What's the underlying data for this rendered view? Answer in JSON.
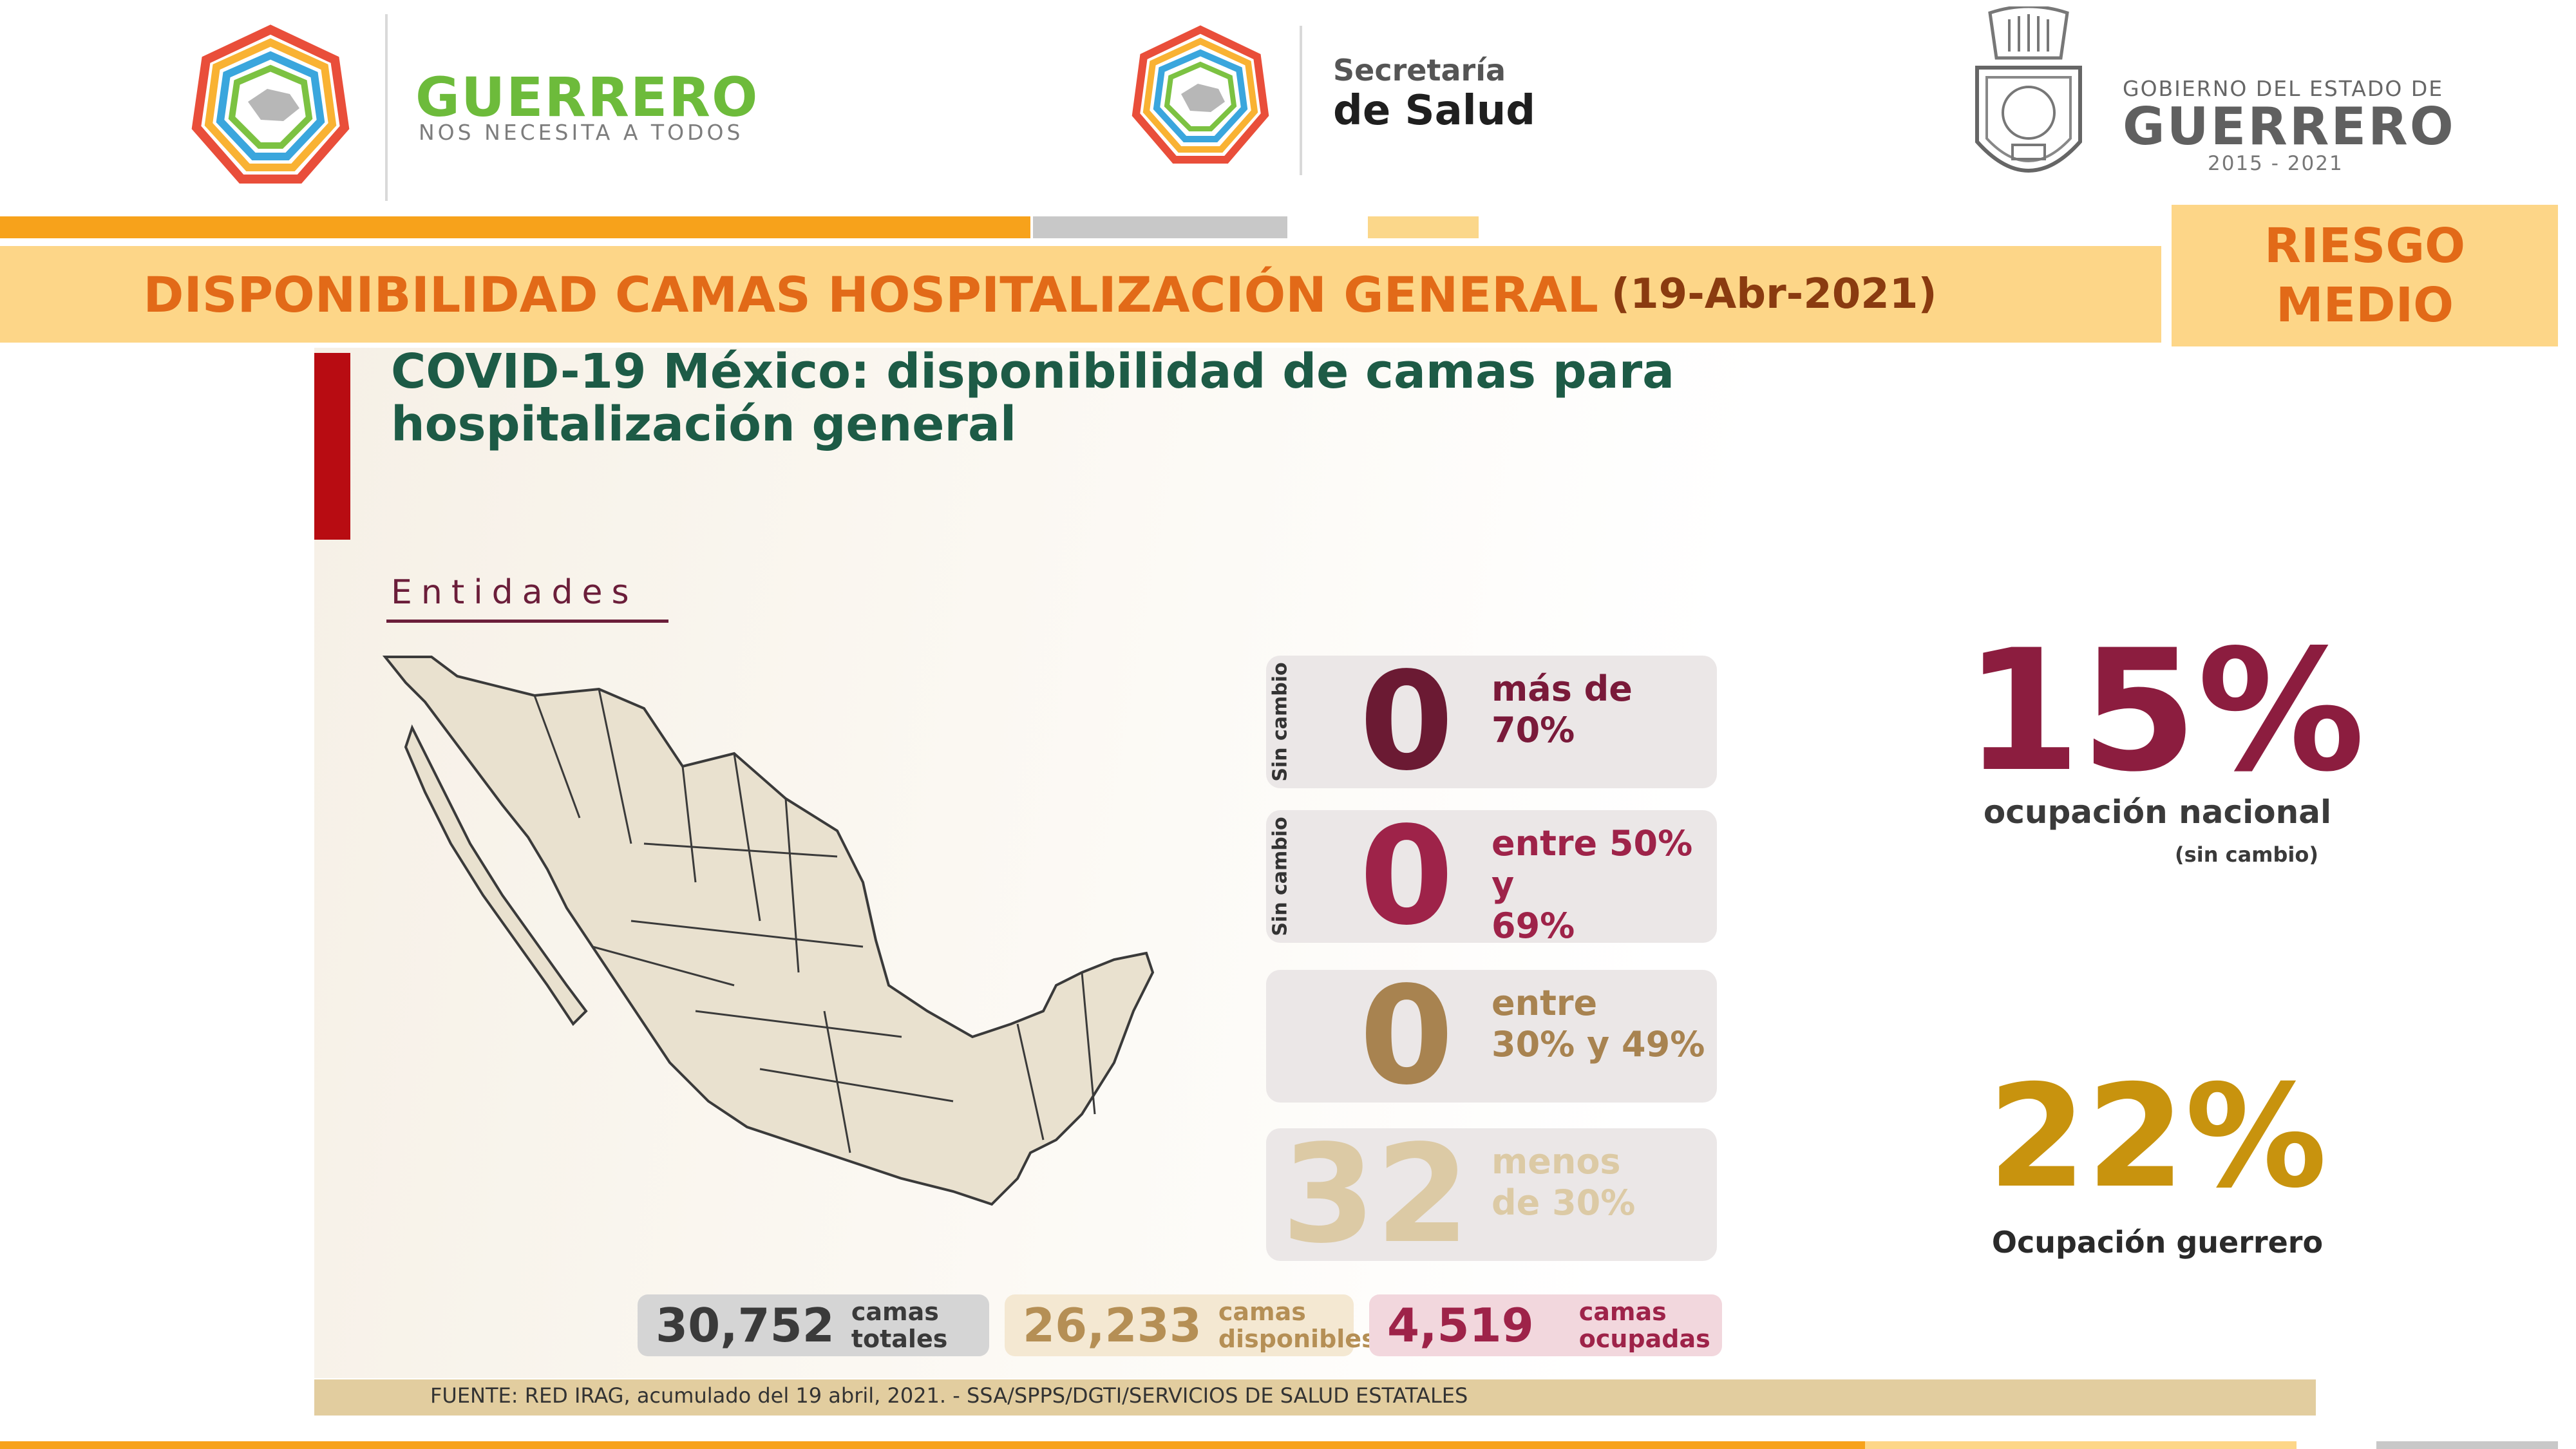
{
  "header": {
    "guerrero_logo": {
      "name": "GUERRERO",
      "tagline": "NOS NECESITA A TODOS"
    },
    "secretaria": {
      "line1": "Secretaría",
      "line2": "de Salud"
    },
    "gobierno": {
      "line1": "GOBIERNO DEL ESTADO DE",
      "line2": "GUERRERO",
      "line3": "2015 - 2021"
    }
  },
  "banner": {
    "title": "DISPONIBILIDAD CAMAS HOSPITALIZACIÓN GENERAL",
    "date": "(19-Abr-2021)",
    "risk_line1": "RIESGO",
    "risk_line2": "MEDIO"
  },
  "main": {
    "title_line1": "COVID-19 México: disponibilidad de camas para",
    "title_line2": "hospitalización general",
    "section_label": "Entidades"
  },
  "categories": [
    {
      "side": "Sin cambio",
      "count": "0",
      "label1": "más de",
      "label2": "70%",
      "num_color": "#6b1a33",
      "label_color": "#7a1a3a"
    },
    {
      "side": "Sin cambio",
      "count": "0",
      "label1": "entre 50% y",
      "label2": "69%",
      "num_color": "#9e2349",
      "label_color": "#9e2349"
    },
    {
      "side": "",
      "count": "0",
      "label1": "entre",
      "label2": "30% y 49%",
      "num_color": "#a88350",
      "label_color": "#a88350"
    },
    {
      "side": "",
      "count": "32",
      "label1": "menos",
      "label2": "de 30%",
      "num_color": "#dccaa5",
      "label_color": "#dccaa5"
    }
  ],
  "national": {
    "percent": "15%",
    "label": "ocupación nacional",
    "note": "(sin cambio)"
  },
  "state": {
    "percent": "22%",
    "label": "Ocupación guerrero"
  },
  "stats": {
    "total": {
      "value": "30,752",
      "label1": "camas",
      "label2": "totales"
    },
    "available": {
      "value": "26,233",
      "label1": "camas",
      "label2": "disponibles"
    },
    "occupied": {
      "value": "4,519",
      "label1": "camas",
      "label2": "ocupadas"
    }
  },
  "source": "FUENTE: RED IRAG, acumulado del 19 abril, 2021.  -  SSA/SPPS/DGTI/SERVICIOS DE SALUD ESTATALES",
  "colors": {
    "orange": "#f7a21b",
    "banner": "#fdd688",
    "title_orange": "#e26a18",
    "green": "#1d5b46",
    "wine": "#8c1d3f",
    "gold": "#c8930e"
  }
}
